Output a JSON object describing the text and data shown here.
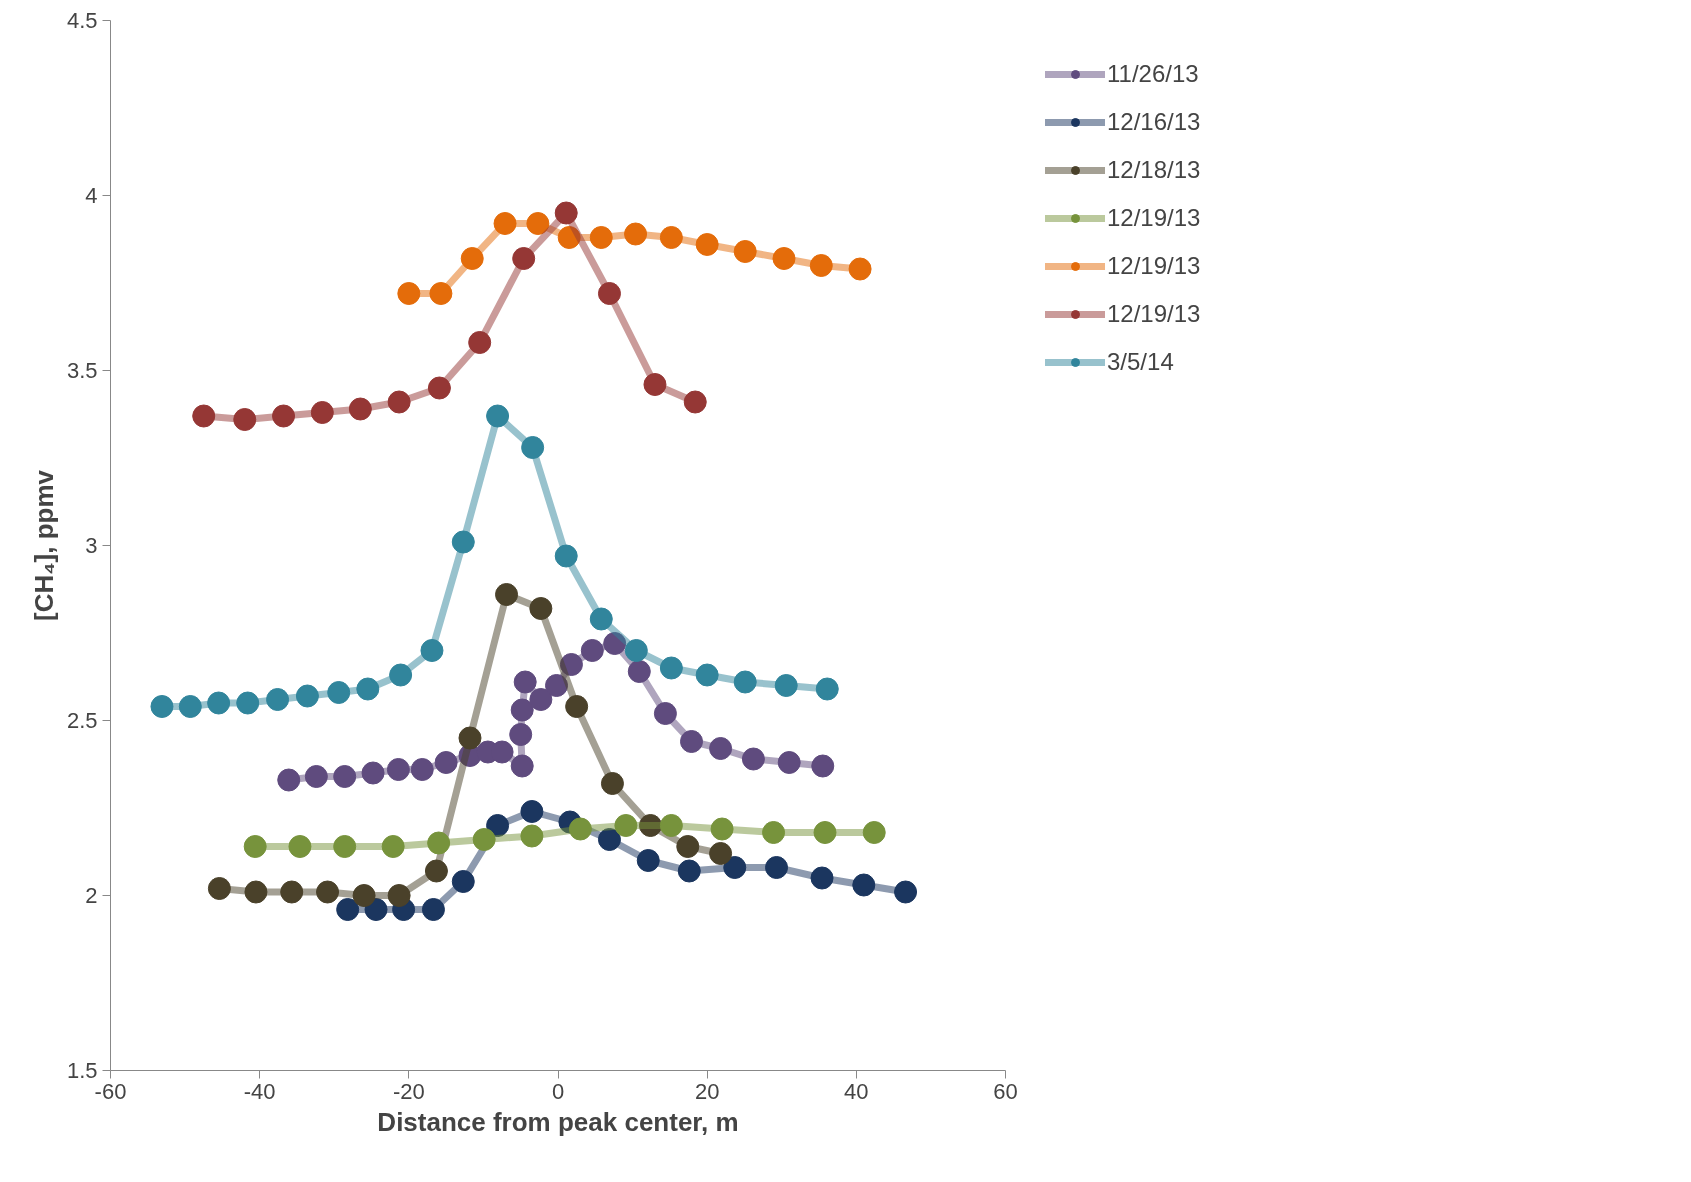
{
  "chart_data": {
    "type": "line",
    "xlabel": "Distance from peak center, m",
    "ylabel": "[CH₄], ppmv",
    "xlim": [
      -60,
      60
    ],
    "xticks": [
      -60,
      -40,
      -20,
      0,
      20,
      40,
      60
    ],
    "ylim": [
      1.5,
      4.5
    ],
    "yticks": [
      1.5,
      2,
      2.5,
      3,
      3.5,
      4,
      4.5
    ],
    "grid": false,
    "legend": "right",
    "marker": "circle",
    "line_style": "solid",
    "series": [
      {
        "name": "11/26/13",
        "color": "#5f4b7e",
        "x": [
          -36.1,
          -32.4,
          -28.6,
          -24.8,
          -21.4,
          -18.2,
          -15.0,
          -11.8,
          -9.4,
          -7.5,
          -4.8,
          -5.0,
          -4.8,
          -4.4,
          -2.3,
          -0.2,
          1.8,
          4.6,
          7.6,
          10.9,
          14.4,
          17.9,
          21.8,
          26.2,
          31.0,
          35.5
        ],
        "values": [
          2.33,
          2.34,
          2.34,
          2.35,
          2.36,
          2.36,
          2.38,
          2.4,
          2.41,
          2.41,
          2.37,
          2.46,
          2.53,
          2.61,
          2.56,
          2.6,
          2.66,
          2.7,
          2.72,
          2.64,
          2.52,
          2.44,
          2.42,
          2.39,
          2.38,
          2.37
        ]
      },
      {
        "name": "12/16/13",
        "color": "#1b365f",
        "x": [
          -28.2,
          -24.4,
          -20.7,
          -16.7,
          -12.7,
          -8.1,
          -3.5,
          1.6,
          6.9,
          12.1,
          17.6,
          23.7,
          29.3,
          35.4,
          41.0,
          46.6
        ],
        "values": [
          1.96,
          1.96,
          1.96,
          1.96,
          2.04,
          2.2,
          2.24,
          2.21,
          2.16,
          2.1,
          2.07,
          2.08,
          2.08,
          2.05,
          2.03,
          2.01
        ]
      },
      {
        "name": "12/18/13",
        "color": "#4a412a",
        "x": [
          -45.4,
          -40.5,
          -35.7,
          -30.9,
          -26.0,
          -21.3,
          -16.3,
          -11.8,
          -6.9,
          -2.3,
          2.5,
          7.3,
          12.4,
          17.4,
          21.8
        ],
        "values": [
          2.02,
          2.01,
          2.01,
          2.01,
          2.0,
          2.0,
          2.07,
          2.45,
          2.86,
          2.82,
          2.54,
          2.32,
          2.2,
          2.14,
          2.12
        ]
      },
      {
        "name": "12/19/13",
        "color": "#77933c",
        "x": [
          -40.6,
          -34.6,
          -28.6,
          -22.1,
          -16.0,
          -9.9,
          -3.5,
          3.0,
          9.1,
          15.2,
          22.0,
          28.9,
          35.8,
          42.4
        ],
        "values": [
          2.14,
          2.14,
          2.14,
          2.14,
          2.15,
          2.16,
          2.17,
          2.19,
          2.2,
          2.2,
          2.19,
          2.18,
          2.18,
          2.18
        ]
      },
      {
        "name": "12/19/13",
        "color": "#e46c0a",
        "x": [
          -20.0,
          -15.7,
          -11.5,
          -7.1,
          -2.7,
          1.5,
          5.8,
          10.4,
          15.2,
          20.0,
          25.1,
          30.3,
          35.3,
          40.5
        ],
        "values": [
          3.72,
          3.72,
          3.82,
          3.92,
          3.92,
          3.88,
          3.88,
          3.89,
          3.88,
          3.86,
          3.84,
          3.82,
          3.8,
          3.79
        ]
      },
      {
        "name": "12/19/13",
        "color": "#953735",
        "x": [
          -47.5,
          -42.0,
          -36.8,
          -31.6,
          -26.5,
          -21.3,
          -15.9,
          -10.5,
          -4.6,
          1.1,
          6.9,
          13.0,
          18.4
        ],
        "values": [
          3.37,
          3.36,
          3.37,
          3.38,
          3.39,
          3.41,
          3.45,
          3.58,
          3.82,
          3.95,
          3.72,
          3.46,
          3.41
        ]
      },
      {
        "name": "3/5/14",
        "color": "#31859c",
        "x": [
          -53.1,
          -49.3,
          -45.5,
          -41.6,
          -37.6,
          -33.6,
          -29.4,
          -25.5,
          -21.1,
          -16.9,
          -12.7,
          -8.1,
          -3.4,
          1.1,
          5.8,
          10.5,
          15.2,
          20.0,
          25.1,
          30.6,
          36.1
        ],
        "values": [
          2.54,
          2.54,
          2.55,
          2.55,
          2.56,
          2.57,
          2.58,
          2.59,
          2.63,
          2.7,
          3.01,
          3.37,
          3.28,
          2.97,
          2.79,
          2.7,
          2.65,
          2.63,
          2.61,
          2.6,
          2.59
        ]
      }
    ]
  }
}
